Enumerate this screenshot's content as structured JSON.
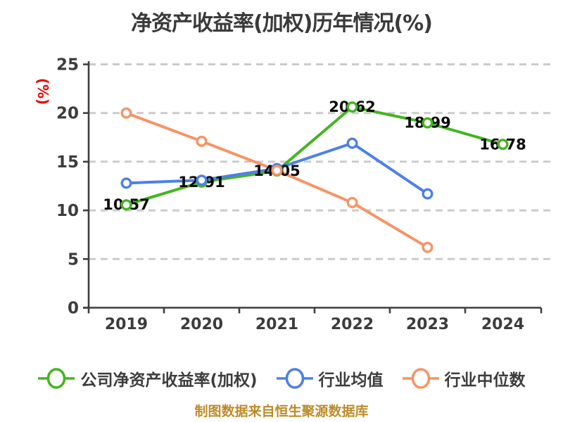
{
  "colors": {
    "company_green": "#44b520",
    "industry_mean_blue": "#4d80e8",
    "industry_median_orange": "#f59467",
    "grid_gray": "#cbcbcb",
    "axis_gray": "#3e3e3e",
    "tick_text": "#3c3c3c",
    "value_label_text": "#0c0c0c",
    "title_text": "#3a3a3a",
    "ylabel_red": "#ea0000",
    "footer_gold": "#bd8b28",
    "marker_fill": "#ffffff"
  },
  "chart_data": {
    "type": "line",
    "title": "净资产收益率(加权)历年情况(%)",
    "xlabel": "",
    "ylabel": "(%)",
    "categories": [
      "2019",
      "2020",
      "2021",
      "2022",
      "2023",
      "2024"
    ],
    "series": [
      {
        "name": "公司净资产收益率(加权)",
        "color": "#44b520",
        "values": [
          10.57,
          12.91,
          14.05,
          20.62,
          18.99,
          16.78
        ],
        "point_labels": [
          "10.57",
          "12.91",
          "14.05",
          "20.62",
          "18.99",
          "16.78"
        ]
      },
      {
        "name": "行业均值",
        "color": "#4d80e8",
        "values": [
          12.8,
          13.1,
          14.3,
          16.9,
          11.7,
          null
        ],
        "point_labels": []
      },
      {
        "name": "行业中位数",
        "color": "#f59467",
        "values": [
          20.0,
          17.1,
          14.1,
          10.8,
          6.2,
          null
        ],
        "point_labels": []
      }
    ],
    "ylim": [
      0,
      25
    ],
    "yticks": [
      0,
      5,
      10,
      15,
      20,
      25
    ],
    "grid": "horizontal dashed",
    "legend_position": "bottom",
    "source_note": "制图数据来自恒生聚源数据库"
  }
}
